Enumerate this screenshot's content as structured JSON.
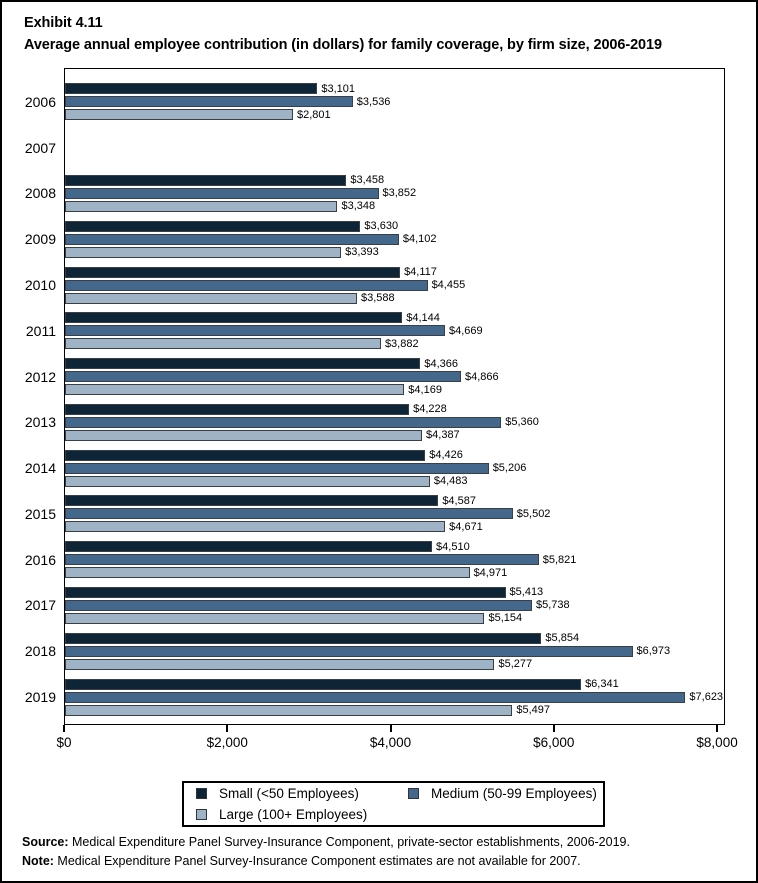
{
  "title": {
    "exhibit": "Exhibit 4.11",
    "subtitle": "Average annual employee contribution (in dollars) for family coverage, by firm size, 2006-2019"
  },
  "chart_data": {
    "type": "bar",
    "orientation": "horizontal",
    "categories": [
      "2006",
      "2007",
      "2008",
      "2009",
      "2010",
      "2011",
      "2012",
      "2013",
      "2014",
      "2015",
      "2016",
      "2017",
      "2018",
      "2019"
    ],
    "series": [
      {
        "name": "Small (<50 Employees)",
        "color": "#0e2537",
        "values": [
          3101,
          null,
          3458,
          3630,
          4117,
          4144,
          4366,
          4228,
          4426,
          4587,
          4510,
          5413,
          5854,
          6341
        ]
      },
      {
        "name": "Medium (50-99 Employees)",
        "color": "#44688c",
        "values": [
          3536,
          null,
          3852,
          4102,
          4455,
          4669,
          4866,
          5360,
          5206,
          5502,
          5821,
          5738,
          6973,
          7623
        ]
      },
      {
        "name": "Large (100+ Employees)",
        "color": "#9fb3c6",
        "values": [
          2801,
          null,
          3348,
          3393,
          3588,
          3882,
          4169,
          4387,
          4483,
          4671,
          4971,
          5154,
          5277,
          5497
        ]
      }
    ],
    "xlabel": "",
    "ylabel": "",
    "xlim": [
      0,
      8000
    ],
    "xticks": [
      {
        "value": 0,
        "label": "$0"
      },
      {
        "value": 2000,
        "label": "$2,000"
      },
      {
        "value": 4000,
        "label": "$4,000"
      },
      {
        "value": 6000,
        "label": "$6,000"
      },
      {
        "value": 8000,
        "label": "$8,000"
      }
    ],
    "value_label_prefix": "$",
    "grid": false,
    "legend_position": "bottom",
    "note_missing": "2007 data not available"
  },
  "legend": {
    "items": [
      {
        "label": "Small (<50 Employees)",
        "color": "#0e2537"
      },
      {
        "label": "Medium (50-99 Employees)",
        "color": "#44688c"
      },
      {
        "label": "Large (100+ Employees)",
        "color": "#9fb3c6"
      }
    ]
  },
  "footer": {
    "source_label": "Source:",
    "source_text": " Medical Expenditure Panel Survey-Insurance Component, private-sector establishments, 2006-2019.",
    "note_label": "Note:",
    "note_text": " Medical Expenditure Panel Survey-Insurance Component estimates are not available for 2007."
  }
}
